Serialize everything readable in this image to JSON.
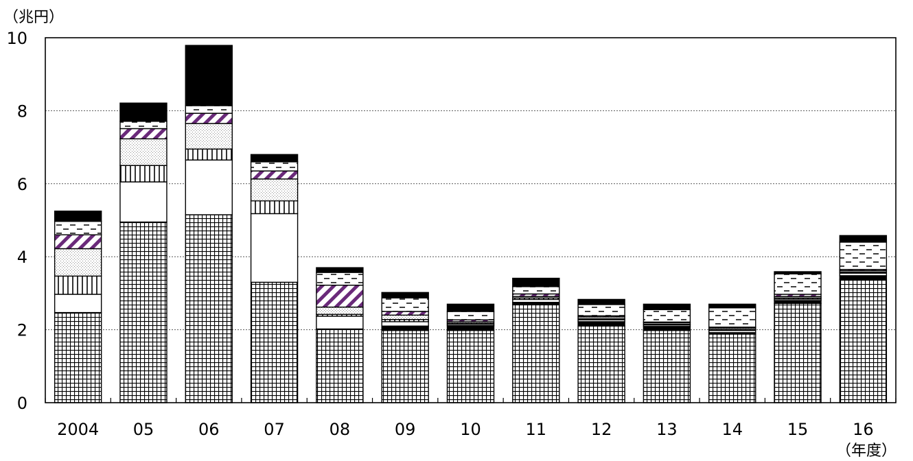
{
  "chart_data": {
    "type": "bar",
    "stacked": true,
    "ylabel": "（兆円）",
    "xlabel": "（年度）",
    "ylim": [
      0,
      10
    ],
    "yticks": [
      0,
      2,
      4,
      6,
      8,
      10
    ],
    "ytick_labels": [
      "0",
      "2",
      "4",
      "6",
      "8",
      "10"
    ],
    "categories": [
      "2004",
      "05",
      "06",
      "07",
      "08",
      "09",
      "10",
      "11",
      "12",
      "13",
      "14",
      "15",
      "16"
    ],
    "grid": "horizontal dotted",
    "series": [
      {
        "pattern": "grid",
        "color": "#000000",
        "values": [
          2.47,
          4.95,
          5.15,
          3.3,
          2.02,
          1.98,
          1.98,
          2.7,
          2.1,
          1.98,
          1.88,
          2.72,
          3.38
        ]
      },
      {
        "pattern": "black-band",
        "color": "#000000",
        "values": [
          0,
          0,
          0,
          0,
          0,
          0.12,
          0.13,
          0.05,
          0.12,
          0.11,
          0.04,
          0.08,
          0.1
        ]
      },
      {
        "pattern": "white",
        "color": "#ffffff",
        "values": [
          0.5,
          1.1,
          1.5,
          1.88,
          0.35,
          0.12,
          0.04,
          0.08,
          0.05,
          0.04,
          0.06,
          0.04,
          0.07
        ]
      },
      {
        "pattern": "vertical-lines",
        "color": "#000000",
        "values": [
          0.5,
          0.45,
          0.3,
          0.35,
          0.05,
          0.06,
          0.03,
          0.04,
          0.03,
          0.02,
          0.03,
          0.03,
          0.03
        ]
      },
      {
        "pattern": "dots",
        "color": "#888888",
        "values": [
          0.75,
          0.73,
          0.7,
          0.6,
          0.2,
          0.12,
          0.04,
          0.04,
          0.05,
          0.04,
          0.04,
          0.04,
          0.04
        ]
      },
      {
        "pattern": "diagonal",
        "color": "#6a2a7a",
        "values": [
          0.38,
          0.28,
          0.28,
          0.22,
          0.6,
          0.1,
          0.05,
          0.07,
          0.03,
          0.02,
          0.02,
          0.06,
          0.03
        ]
      },
      {
        "pattern": "dashes",
        "color": "#000000",
        "values": [
          0.37,
          0.2,
          0.21,
          0.25,
          0.35,
          0.37,
          0.23,
          0.2,
          0.31,
          0.34,
          0.53,
          0.56,
          0.75
        ]
      },
      {
        "pattern": "solid-black",
        "color": "#000000",
        "values": [
          0.28,
          0.5,
          1.65,
          0.2,
          0.13,
          0.15,
          0.2,
          0.23,
          0.14,
          0.15,
          0.1,
          0.06,
          0.18
        ]
      }
    ]
  }
}
